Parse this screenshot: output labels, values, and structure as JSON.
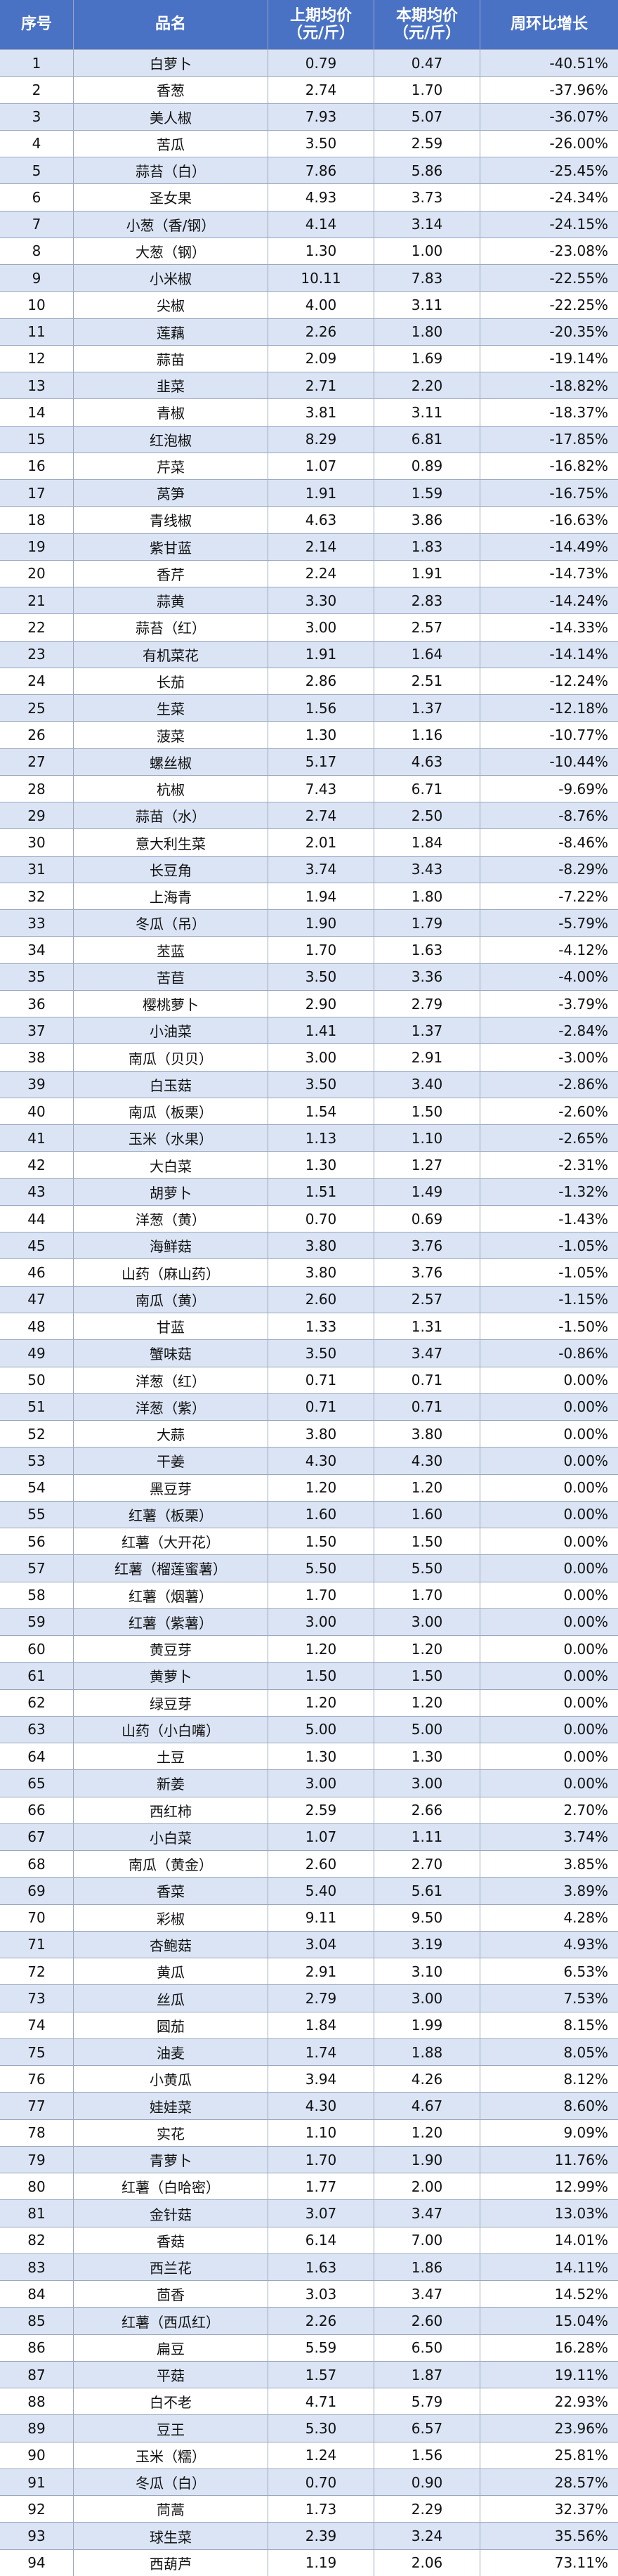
{
  "table": {
    "headers": [
      [
        "序号"
      ],
      [
        "品名"
      ],
      [
        "上期均价",
        "（元/斤）"
      ],
      [
        "本期均价",
        "（元/斤）"
      ],
      [
        "周环比增长"
      ]
    ],
    "rows": [
      [
        "1",
        "白萝卜",
        "0.79",
        "0.47",
        "-40.51%"
      ],
      [
        "2",
        "香葱",
        "2.74",
        "1.70",
        "-37.96%"
      ],
      [
        "3",
        "美人椒",
        "7.93",
        "5.07",
        "-36.07%"
      ],
      [
        "4",
        "苦瓜",
        "3.50",
        "2.59",
        "-26.00%"
      ],
      [
        "5",
        "蒜苔（白）",
        "7.86",
        "5.86",
        "-25.45%"
      ],
      [
        "6",
        "圣女果",
        "4.93",
        "3.73",
        "-24.34%"
      ],
      [
        "7",
        "小葱（香/钢）",
        "4.14",
        "3.14",
        "-24.15%"
      ],
      [
        "8",
        "大葱（钢）",
        "1.30",
        "1.00",
        "-23.08%"
      ],
      [
        "9",
        "小米椒",
        "10.11",
        "7.83",
        "-22.55%"
      ],
      [
        "10",
        "尖椒",
        "4.00",
        "3.11",
        "-22.25%"
      ],
      [
        "11",
        "莲藕",
        "2.26",
        "1.80",
        "-20.35%"
      ],
      [
        "12",
        "蒜苗",
        "2.09",
        "1.69",
        "-19.14%"
      ],
      [
        "13",
        "韭菜",
        "2.71",
        "2.20",
        "-18.82%"
      ],
      [
        "14",
        "青椒",
        "3.81",
        "3.11",
        "-18.37%"
      ],
      [
        "15",
        "红泡椒",
        "8.29",
        "6.81",
        "-17.85%"
      ],
      [
        "16",
        "芹菜",
        "1.07",
        "0.89",
        "-16.82%"
      ],
      [
        "17",
        "莴笋",
        "1.91",
        "1.59",
        "-16.75%"
      ],
      [
        "18",
        "青线椒",
        "4.63",
        "3.86",
        "-16.63%"
      ],
      [
        "19",
        "紫甘蓝",
        "2.14",
        "1.83",
        "-14.49%"
      ],
      [
        "20",
        "香芹",
        "2.24",
        "1.91",
        "-14.73%"
      ],
      [
        "21",
        "蒜黄",
        "3.30",
        "2.83",
        "-14.24%"
      ],
      [
        "22",
        "蒜苔（红）",
        "3.00",
        "2.57",
        "-14.33%"
      ],
      [
        "23",
        "有机菜花",
        "1.91",
        "1.64",
        "-14.14%"
      ],
      [
        "24",
        "长茄",
        "2.86",
        "2.51",
        "-12.24%"
      ],
      [
        "25",
        "生菜",
        "1.56",
        "1.37",
        "-12.18%"
      ],
      [
        "26",
        "菠菜",
        "1.30",
        "1.16",
        "-10.77%"
      ],
      [
        "27",
        "螺丝椒",
        "5.17",
        "4.63",
        "-10.44%"
      ],
      [
        "28",
        "杭椒",
        "7.43",
        "6.71",
        "-9.69%"
      ],
      [
        "29",
        "蒜苗（水）",
        "2.74",
        "2.50",
        "-8.76%"
      ],
      [
        "30",
        "意大利生菜",
        "2.01",
        "1.84",
        "-8.46%"
      ],
      [
        "31",
        "长豆角",
        "3.74",
        "3.43",
        "-8.29%"
      ],
      [
        "32",
        "上海青",
        "1.94",
        "1.80",
        "-7.22%"
      ],
      [
        "33",
        "冬瓜（吊）",
        "1.90",
        "1.79",
        "-5.79%"
      ],
      [
        "34",
        "苤蓝",
        "1.70",
        "1.63",
        "-4.12%"
      ],
      [
        "35",
        "苦苣",
        "3.50",
        "3.36",
        "-4.00%"
      ],
      [
        "36",
        "樱桃萝卜",
        "2.90",
        "2.79",
        "-3.79%"
      ],
      [
        "37",
        "小油菜",
        "1.41",
        "1.37",
        "-2.84%"
      ],
      [
        "38",
        "南瓜（贝贝）",
        "3.00",
        "2.91",
        "-3.00%"
      ],
      [
        "39",
        "白玉菇",
        "3.50",
        "3.40",
        "-2.86%"
      ],
      [
        "40",
        "南瓜（板栗）",
        "1.54",
        "1.50",
        "-2.60%"
      ],
      [
        "41",
        "玉米（水果）",
        "1.13",
        "1.10",
        "-2.65%"
      ],
      [
        "42",
        "大白菜",
        "1.30",
        "1.27",
        "-2.31%"
      ],
      [
        "43",
        "胡萝卜",
        "1.51",
        "1.49",
        "-1.32%"
      ],
      [
        "44",
        "洋葱（黄）",
        "0.70",
        "0.69",
        "-1.43%"
      ],
      [
        "45",
        "海鲜菇",
        "3.80",
        "3.76",
        "-1.05%"
      ],
      [
        "46",
        "山药（麻山药）",
        "3.80",
        "3.76",
        "-1.05%"
      ],
      [
        "47",
        "南瓜（黄）",
        "2.60",
        "2.57",
        "-1.15%"
      ],
      [
        "48",
        "甘蓝",
        "1.33",
        "1.31",
        "-1.50%"
      ],
      [
        "49",
        "蟹味菇",
        "3.50",
        "3.47",
        "-0.86%"
      ],
      [
        "50",
        "洋葱（红）",
        "0.71",
        "0.71",
        "0.00%"
      ],
      [
        "51",
        "洋葱（紫）",
        "0.71",
        "0.71",
        "0.00%"
      ],
      [
        "52",
        "大蒜",
        "3.80",
        "3.80",
        "0.00%"
      ],
      [
        "53",
        "干姜",
        "4.30",
        "4.30",
        "0.00%"
      ],
      [
        "54",
        "黑豆芽",
        "1.20",
        "1.20",
        "0.00%"
      ],
      [
        "55",
        "红薯（板栗）",
        "1.60",
        "1.60",
        "0.00%"
      ],
      [
        "56",
        "红薯（大开花）",
        "1.50",
        "1.50",
        "0.00%"
      ],
      [
        "57",
        "红薯（榴莲蜜薯）",
        "5.50",
        "5.50",
        "0.00%"
      ],
      [
        "58",
        "红薯（烟薯）",
        "1.70",
        "1.70",
        "0.00%"
      ],
      [
        "59",
        "红薯（紫薯）",
        "3.00",
        "3.00",
        "0.00%"
      ],
      [
        "60",
        "黄豆芽",
        "1.20",
        "1.20",
        "0.00%"
      ],
      [
        "61",
        "黄萝卜",
        "1.50",
        "1.50",
        "0.00%"
      ],
      [
        "62",
        "绿豆芽",
        "1.20",
        "1.20",
        "0.00%"
      ],
      [
        "63",
        "山药（小白嘴）",
        "5.00",
        "5.00",
        "0.00%"
      ],
      [
        "64",
        "土豆",
        "1.30",
        "1.30",
        "0.00%"
      ],
      [
        "65",
        "新姜",
        "3.00",
        "3.00",
        "0.00%"
      ],
      [
        "66",
        "西红柿",
        "2.59",
        "2.66",
        "2.70%"
      ],
      [
        "67",
        "小白菜",
        "1.07",
        "1.11",
        "3.74%"
      ],
      [
        "68",
        "南瓜（黄金）",
        "2.60",
        "2.70",
        "3.85%"
      ],
      [
        "69",
        "香菜",
        "5.40",
        "5.61",
        "3.89%"
      ],
      [
        "70",
        "彩椒",
        "9.11",
        "9.50",
        "4.28%"
      ],
      [
        "71",
        "杏鲍菇",
        "3.04",
        "3.19",
        "4.93%"
      ],
      [
        "72",
        "黄瓜",
        "2.91",
        "3.10",
        "6.53%"
      ],
      [
        "73",
        "丝瓜",
        "2.79",
        "3.00",
        "7.53%"
      ],
      [
        "74",
        "圆茄",
        "1.84",
        "1.99",
        "8.15%"
      ],
      [
        "75",
        "油麦",
        "1.74",
        "1.88",
        "8.05%"
      ],
      [
        "76",
        "小黄瓜",
        "3.94",
        "4.26",
        "8.12%"
      ],
      [
        "77",
        "娃娃菜",
        "4.30",
        "4.67",
        "8.60%"
      ],
      [
        "78",
        "实花",
        "1.10",
        "1.20",
        "9.09%"
      ],
      [
        "79",
        "青萝卜",
        "1.70",
        "1.90",
        "11.76%"
      ],
      [
        "80",
        "红薯（白哈密）",
        "1.77",
        "2.00",
        "12.99%"
      ],
      [
        "81",
        "金针菇",
        "3.07",
        "3.47",
        "13.03%"
      ],
      [
        "82",
        "香菇",
        "6.14",
        "7.00",
        "14.01%"
      ],
      [
        "83",
        "西兰花",
        "1.63",
        "1.86",
        "14.11%"
      ],
      [
        "84",
        "茴香",
        "3.03",
        "3.47",
        "14.52%"
      ],
      [
        "85",
        "红薯（西瓜红）",
        "2.26",
        "2.60",
        "15.04%"
      ],
      [
        "86",
        "扁豆",
        "5.59",
        "6.50",
        "16.28%"
      ],
      [
        "87",
        "平菇",
        "1.57",
        "1.87",
        "19.11%"
      ],
      [
        "88",
        "白不老",
        "4.71",
        "5.79",
        "22.93%"
      ],
      [
        "89",
        "豆王",
        "5.30",
        "6.57",
        "23.96%"
      ],
      [
        "90",
        "玉米（糯）",
        "1.24",
        "1.56",
        "25.81%"
      ],
      [
        "91",
        "冬瓜（白）",
        "0.70",
        "0.90",
        "28.57%"
      ],
      [
        "92",
        "茼蒿",
        "1.73",
        "2.29",
        "32.37%"
      ],
      [
        "93",
        "球生菜",
        "2.39",
        "3.24",
        "35.56%"
      ],
      [
        "94",
        "西葫芦",
        "1.19",
        "2.06",
        "73.11%"
      ]
    ]
  }
}
